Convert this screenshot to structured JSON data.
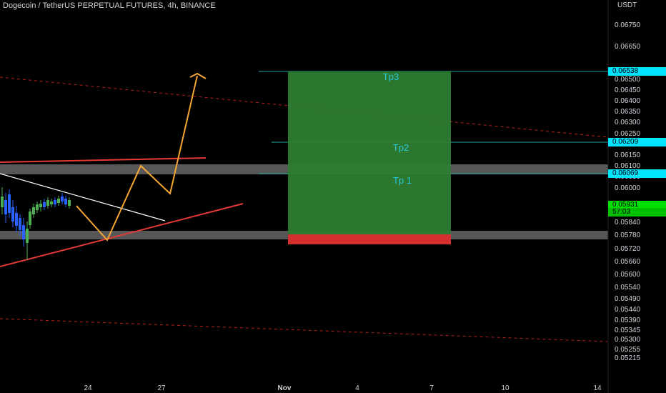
{
  "header": {
    "symbol": "Dogecoin / TetherUS PERPETUAL FUTURES, 4h, BINANCE",
    "unit": "USDT"
  },
  "price_axis": [
    "0.06750",
    "0.06650",
    "0.06500",
    "0.06450",
    "0.06400",
    "0.06350",
    "0.06300",
    "0.06250",
    "0.06150",
    "0.06100",
    "0.06050",
    "0.06000",
    "0.05840",
    "0.05780",
    "0.05720",
    "0.05660",
    "0.05600",
    "0.05540",
    "0.05490",
    "0.05440",
    "0.05390",
    "0.05345",
    "0.05300",
    "0.05255",
    "0.05215"
  ],
  "date_axis": [
    "24",
    "27",
    "Nov",
    "4",
    "7",
    "10",
    "14"
  ],
  "price_tags": [
    {
      "value": "0.06538",
      "color": "#00e5ff"
    },
    {
      "value": "0.06209",
      "color": "#00e5ff"
    },
    {
      "value": "0.06069",
      "color": "#00e5ff"
    },
    {
      "value": "0.05931",
      "color": "#00e000"
    }
  ],
  "countdown": "57:03",
  "targets": [
    "Tp3",
    "Tp2",
    "Tp 1"
  ],
  "colors": {
    "up": "#26a69a",
    "down": "#ef5350",
    "profit": "#2e7d32",
    "loss": "#d32f2f",
    "path": "#f7a634",
    "trend": "#e53935"
  }
}
